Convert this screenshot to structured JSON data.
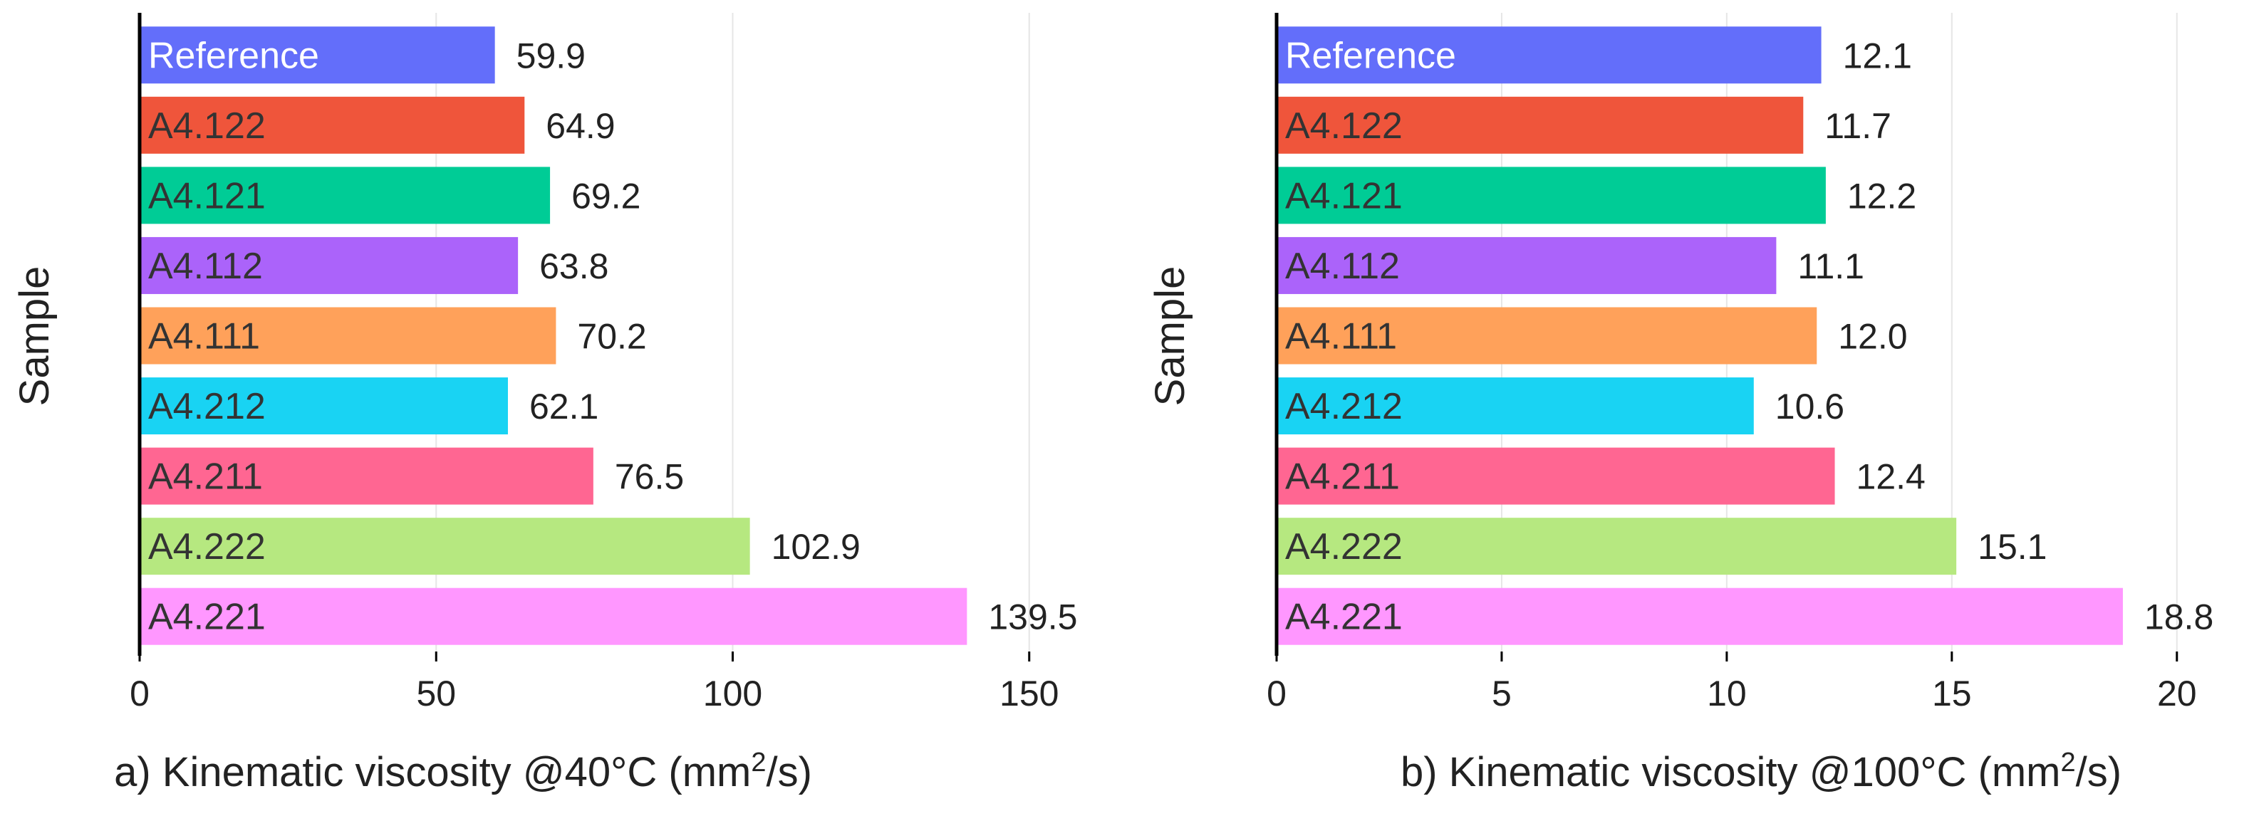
{
  "chart_data": [
    {
      "type": "bar",
      "orientation": "horizontal",
      "categories": [
        "Reference",
        "A4.122",
        "A4.121",
        "A4.112",
        "A4.111",
        "A4.212",
        "A4.211",
        "A4.222",
        "A4.221"
      ],
      "values": [
        59.9,
        64.9,
        69.2,
        63.8,
        70.2,
        62.1,
        76.5,
        102.9,
        139.5
      ],
      "value_labels": [
        "59.9",
        "64.9",
        "69.2",
        "63.8",
        "70.2",
        "62.1",
        "76.5",
        "102.9",
        "139.5"
      ],
      "colors": [
        "#636efa",
        "#ef553b",
        "#00cc96",
        "#ab63fa",
        "#ffa15a",
        "#19d3f3",
        "#ff6692",
        "#b6e880",
        "#ff97ff"
      ],
      "xlabel_prefix": "a) Kinematic viscosity @40°C (mm",
      "xlabel_sup": "2",
      "xlabel_suffix": "/s)",
      "ylabel": "Sample",
      "xlim": [
        0,
        160
      ],
      "xticks": [
        0,
        50,
        100,
        150
      ],
      "xtick_labels": [
        "0",
        "50",
        "100",
        "150"
      ],
      "grid": true
    },
    {
      "type": "bar",
      "orientation": "horizontal",
      "categories": [
        "Reference",
        "A4.122",
        "A4.121",
        "A4.112",
        "A4.111",
        "A4.212",
        "A4.211",
        "A4.222",
        "A4.221"
      ],
      "values": [
        12.1,
        11.7,
        12.2,
        11.1,
        12.0,
        10.6,
        12.4,
        15.1,
        18.8
      ],
      "value_labels": [
        "12.1",
        "11.7",
        "12.2",
        "11.1",
        "12.0",
        "10.6",
        "12.4",
        "15.1",
        "18.8"
      ],
      "colors": [
        "#636efa",
        "#ef553b",
        "#00cc96",
        "#ab63fa",
        "#ffa15a",
        "#19d3f3",
        "#ff6692",
        "#b6e880",
        "#ff97ff"
      ],
      "xlabel_prefix": "b) Kinematic viscosity @100°C (mm",
      "xlabel_sup": "2",
      "xlabel_suffix": "/s)",
      "ylabel": "Sample",
      "xlim": [
        0,
        20.7
      ],
      "xticks": [
        0,
        5,
        10,
        15,
        20
      ],
      "xtick_labels": [
        "0",
        "5",
        "10",
        "15",
        "20"
      ],
      "grid": true
    }
  ]
}
